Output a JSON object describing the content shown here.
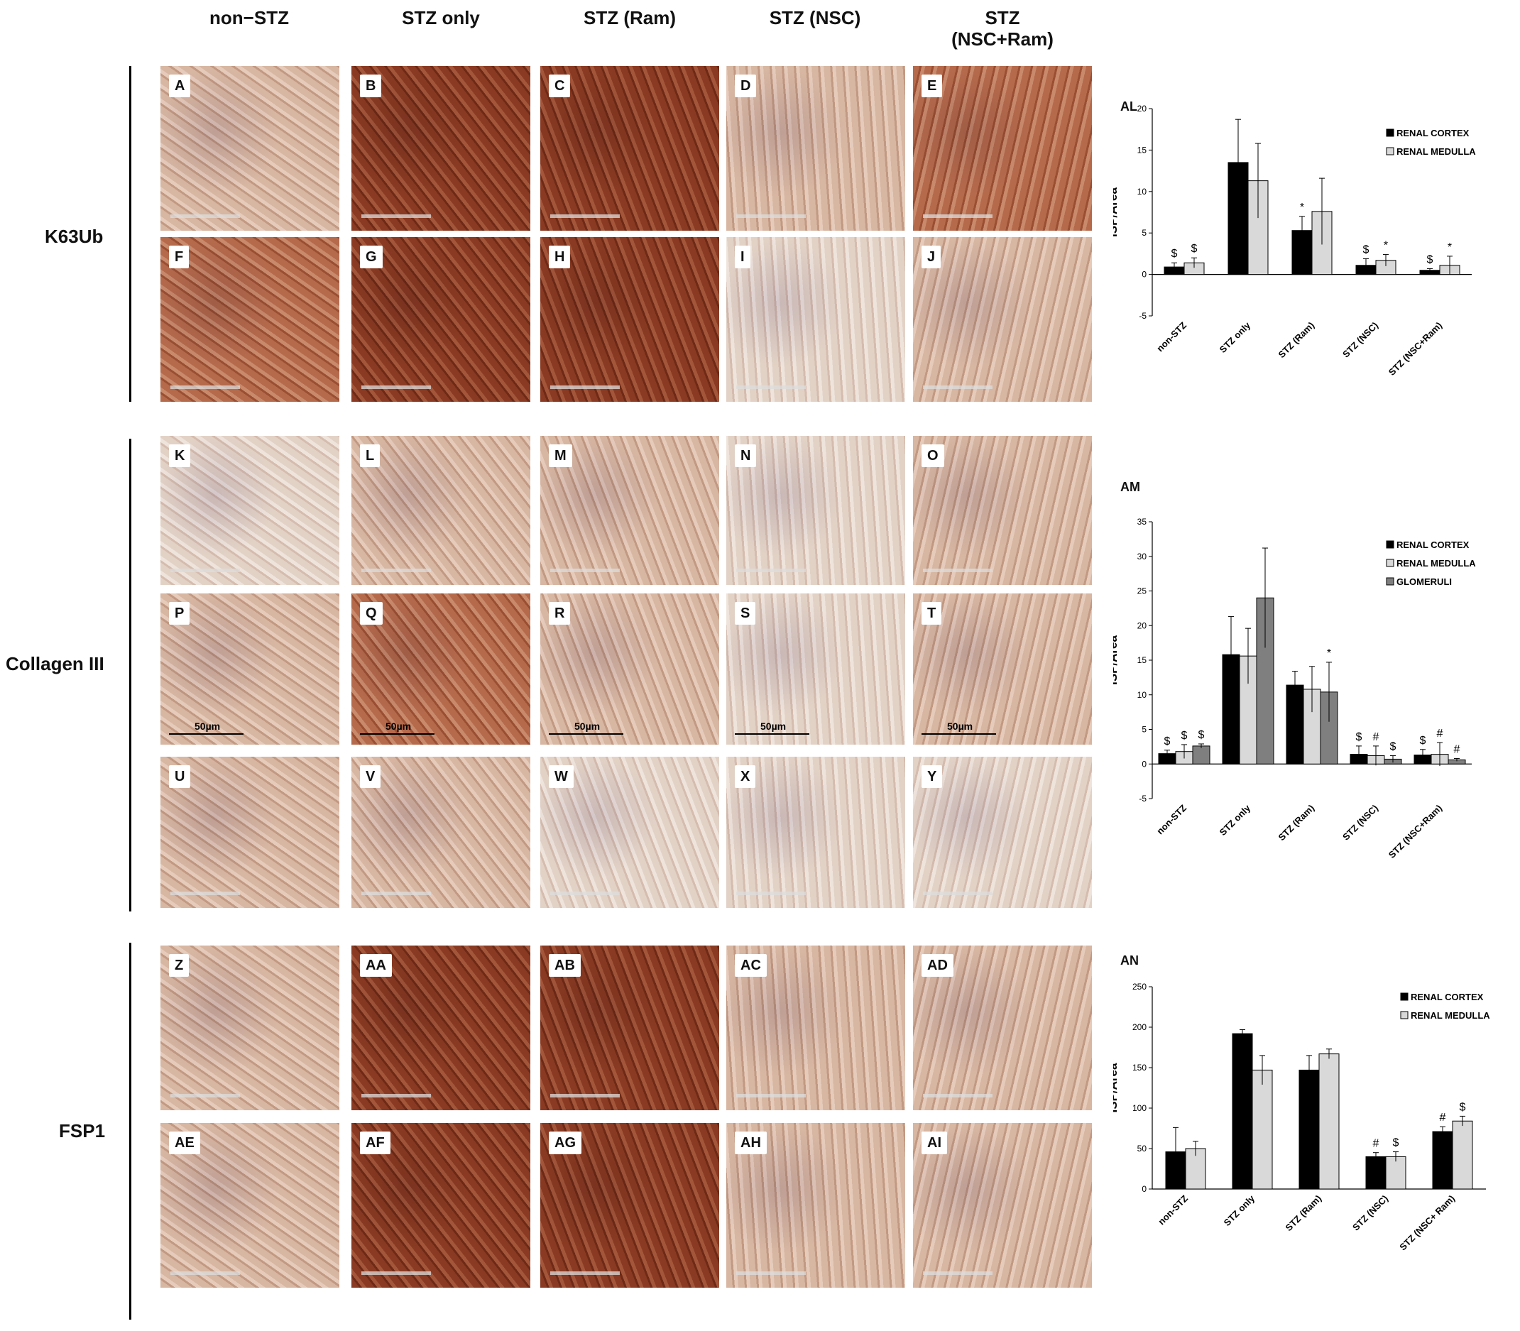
{
  "columns": [
    "non−STZ",
    "STZ only",
    "STZ (Ram)",
    "STZ (NSC)",
    "STZ (NSC+Ram)"
  ],
  "columns_display": [
    [
      "non−STZ"
    ],
    [
      "STZ only"
    ],
    [
      "STZ (Ram)"
    ],
    [
      "STZ (NSC)"
    ],
    [
      "STZ",
      "(NSC+Ram)"
    ]
  ],
  "row_labels": {
    "k63": "K63Ub",
    "col3": "Collagen III",
    "fsp1": "FSP1"
  },
  "panels": {
    "k63_r1": [
      "A",
      "B",
      "C",
      "D",
      "E"
    ],
    "k63_r2": [
      "F",
      "G",
      "H",
      "I",
      "J"
    ],
    "col_r1": [
      "K",
      "L",
      "M",
      "N",
      "O"
    ],
    "col_r2": [
      "P",
      "Q",
      "R",
      "S",
      "T"
    ],
    "col_r3": [
      "U",
      "V",
      "W",
      "X",
      "Y"
    ],
    "fsp_r1": [
      "Z",
      "AA",
      "AB",
      "AC",
      "AD"
    ],
    "fsp_r2": [
      "AE",
      "AF",
      "AG",
      "AH",
      "AI"
    ]
  },
  "scale_label": "50µm",
  "colors": {
    "stain_dark": "#8a3a22",
    "stain_medium": "#b56a4c",
    "stain_light": "#d7b6a2",
    "stain_pale": "#e2d2c6",
    "hematoxylin": "#8f7fa8",
    "cortex": "#000000",
    "medulla": "#d9d9d9",
    "glomeruli": "#7f7f7f"
  },
  "chart_data": [
    {
      "id": "AL",
      "type": "bar",
      "ylabel": "ISP/Area",
      "ylim": [
        -5,
        20
      ],
      "yticks": [
        -5,
        0,
        5,
        10,
        15,
        20
      ],
      "categories": [
        "non-STZ",
        "STZ only",
        "STZ (Ram)",
        "STZ (NSC)",
        "STZ (NSC+Ram)"
      ],
      "series": [
        {
          "name": "RENAL CORTEX",
          "color": "#000000",
          "values": [
            0.9,
            13.5,
            5.3,
            1.1,
            0.5
          ],
          "errors": [
            0.5,
            5.2,
            1.7,
            0.8,
            0.2
          ],
          "annotations": [
            "$",
            "",
            "*",
            "$",
            "$"
          ]
        },
        {
          "name": "RENAL MEDULLA",
          "color": "#d9d9d9",
          "values": [
            1.4,
            11.3,
            7.6,
            1.7,
            1.1
          ],
          "errors": [
            0.6,
            4.5,
            4.0,
            0.7,
            1.1
          ],
          "annotations": [
            "$",
            "",
            "",
            "*",
            "*"
          ]
        }
      ]
    },
    {
      "id": "AM",
      "type": "bar",
      "ylabel": "ISP/Area",
      "ylim": [
        -5,
        35
      ],
      "yticks": [
        -5,
        0,
        5,
        10,
        15,
        20,
        25,
        30,
        35
      ],
      "categories": [
        "non-STZ",
        "STZ only",
        "STZ (Ram)",
        "STZ (NSC)",
        "STZ (NSC+Ram)"
      ],
      "series": [
        {
          "name": "RENAL CORTEX",
          "color": "#000000",
          "values": [
            1.5,
            15.8,
            11.4,
            1.4,
            1.3
          ],
          "errors": [
            0.5,
            5.5,
            2.0,
            1.2,
            0.8
          ],
          "annotations": [
            "$",
            "",
            "",
            "$",
            "$"
          ]
        },
        {
          "name": "RENAL MEDULLA",
          "color": "#d9d9d9",
          "values": [
            1.8,
            15.6,
            10.8,
            1.2,
            1.4
          ],
          "errors": [
            1.0,
            4.0,
            3.3,
            1.4,
            1.7
          ],
          "annotations": [
            "$",
            "",
            "",
            "#",
            "#"
          ]
        },
        {
          "name": "GLOMERULI",
          "color": "#7f7f7f",
          "values": [
            2.6,
            24.0,
            10.4,
            0.7,
            0.6
          ],
          "errors": [
            0.3,
            7.2,
            4.3,
            0.5,
            0.2
          ],
          "annotations": [
            "$",
            "",
            "*",
            "$",
            "#"
          ]
        }
      ]
    },
    {
      "id": "AN",
      "type": "bar",
      "ylabel": "ISP/Area",
      "ylim": [
        0,
        250
      ],
      "yticks": [
        0,
        50,
        100,
        150,
        200,
        250
      ],
      "categories": [
        "non-STZ",
        "STZ only",
        "STZ (Ram)",
        "STZ (NSC)",
        "STZ (NSC+ Ram)"
      ],
      "series": [
        {
          "name": "RENAL CORTEX",
          "color": "#000000",
          "values": [
            46,
            192,
            147,
            40,
            71
          ],
          "errors": [
            30,
            5,
            18,
            5,
            6
          ],
          "annotations": [
            "",
            "",
            "",
            "#",
            "#"
          ]
        },
        {
          "name": "RENAL MEDULLA",
          "color": "#d9d9d9",
          "values": [
            50,
            147,
            167,
            40,
            84
          ],
          "errors": [
            9,
            18,
            6,
            6,
            6
          ],
          "annotations": [
            "",
            "",
            "",
            "$",
            "$"
          ]
        }
      ]
    }
  ]
}
